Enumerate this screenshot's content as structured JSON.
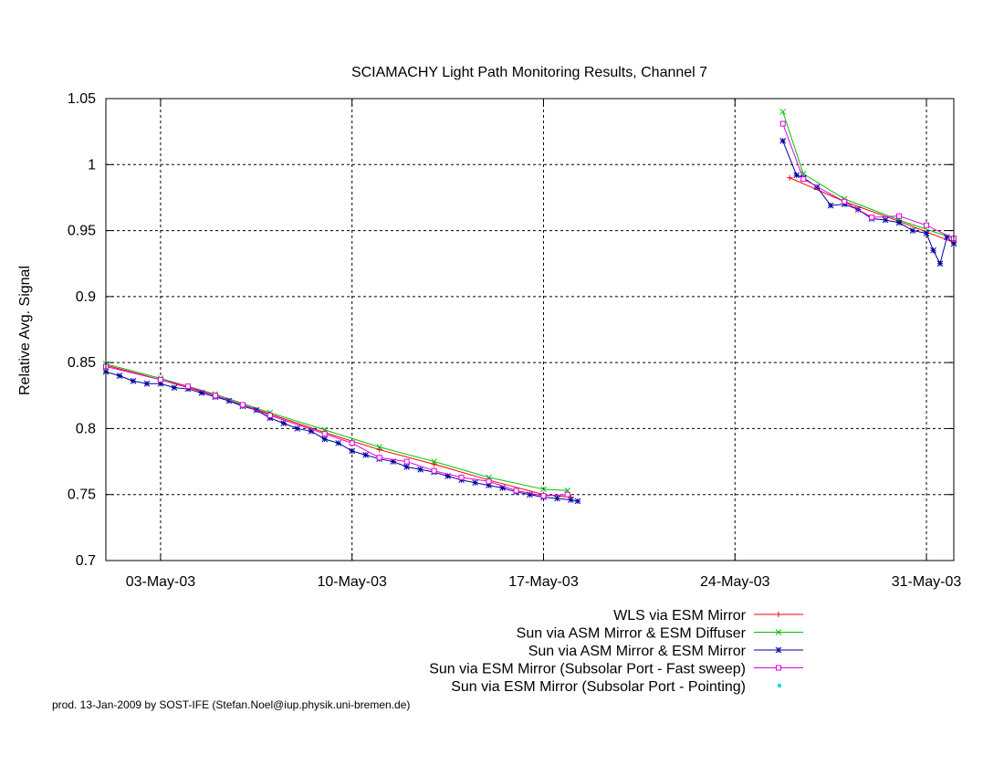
{
  "chart_data": {
    "type": "line",
    "title": "SCIAMACHY Light Path Monitoring Results, Channel 7",
    "xlabel": "",
    "ylabel": "Relative Avg. Signal",
    "x_range": [
      "2003-05-01",
      "2003-06-01"
    ],
    "ylim": [
      0.7,
      1.05
    ],
    "y_ticks": [
      0.7,
      0.75,
      0.8,
      0.85,
      0.9,
      0.95,
      1,
      1.05
    ],
    "y_tick_labels": [
      "0.7",
      "0.75",
      "0.8",
      "0.85",
      "0.9",
      "0.95",
      "1",
      "1.05"
    ],
    "x_ticks": [
      "2003-05-03",
      "2003-05-10",
      "2003-05-17",
      "2003-05-24",
      "2003-05-31"
    ],
    "x_tick_labels": [
      "03-May-03",
      "10-May-03",
      "17-May-03",
      "24-May-03",
      "31-May-03"
    ],
    "grid": true,
    "legend_position": "bottom-right",
    "series": [
      {
        "name": "WLS via ESM Mirror",
        "color": "#ff0000",
        "marker": "plus",
        "points": [
          [
            "2003-05-01",
            0.848
          ],
          [
            "2003-05-03",
            0.837
          ],
          [
            "2003-05-05",
            0.825
          ],
          [
            "2003-05-07",
            0.811
          ],
          [
            "2003-05-09",
            0.797
          ],
          [
            "2003-05-11",
            0.784
          ],
          [
            "2003-05-13",
            0.773
          ],
          [
            "2003-05-15",
            0.761
          ],
          [
            "2003-05-17",
            0.75
          ],
          [
            "2003-05-18",
            0.748
          ],
          [
            "2003-05-26",
            0.99
          ],
          [
            "2003-05-28",
            0.972
          ],
          [
            "2003-05-30",
            0.957
          ],
          [
            "2003-06-01",
            0.941
          ]
        ]
      },
      {
        "name": "Sun via ASM Mirror & ESM Diffuser",
        "color": "#00c000",
        "marker": "cross",
        "points": [
          [
            "2003-05-01",
            0.849
          ],
          [
            "2003-05-03",
            0.838
          ],
          [
            "2003-05-05",
            0.826
          ],
          [
            "2003-05-07",
            0.812
          ],
          [
            "2003-05-09",
            0.799
          ],
          [
            "2003-05-11",
            0.786
          ],
          [
            "2003-05-13",
            0.775
          ],
          [
            "2003-05-15",
            0.763
          ],
          [
            "2003-05-17",
            0.754
          ],
          [
            "2003-05-17 21:00",
            0.753
          ],
          [
            "2003-05-25 18:00",
            1.04
          ],
          [
            "2003-05-26 12:00",
            0.993
          ],
          [
            "2003-05-28",
            0.974
          ],
          [
            "2003-05-30",
            0.958
          ],
          [
            "2003-06-01",
            0.944
          ]
        ]
      },
      {
        "name": "Sun via ASM Mirror & ESM Mirror",
        "color": "#0000a0",
        "marker": "star",
        "points": [
          [
            "2003-05-01",
            0.843
          ],
          [
            "2003-05-01 12:00",
            0.84
          ],
          [
            "2003-05-02",
            0.836
          ],
          [
            "2003-05-02 12:00",
            0.834
          ],
          [
            "2003-05-03",
            0.834
          ],
          [
            "2003-05-03 12:00",
            0.831
          ],
          [
            "2003-05-04",
            0.83
          ],
          [
            "2003-05-04 12:00",
            0.827
          ],
          [
            "2003-05-05",
            0.824
          ],
          [
            "2003-05-05 12:00",
            0.821
          ],
          [
            "2003-05-06",
            0.817
          ],
          [
            "2003-05-06 12:00",
            0.814
          ],
          [
            "2003-05-07",
            0.808
          ],
          [
            "2003-05-07 12:00",
            0.804
          ],
          [
            "2003-05-08",
            0.8
          ],
          [
            "2003-05-08 12:00",
            0.798
          ],
          [
            "2003-05-09",
            0.792
          ],
          [
            "2003-05-09 12:00",
            0.789
          ],
          [
            "2003-05-10",
            0.783
          ],
          [
            "2003-05-10 12:00",
            0.78
          ],
          [
            "2003-05-11",
            0.777
          ],
          [
            "2003-05-11 12:00",
            0.775
          ],
          [
            "2003-05-12",
            0.771
          ],
          [
            "2003-05-12 12:00",
            0.769
          ],
          [
            "2003-05-13",
            0.767
          ],
          [
            "2003-05-13 12:00",
            0.764
          ],
          [
            "2003-05-14",
            0.761
          ],
          [
            "2003-05-14 12:00",
            0.759
          ],
          [
            "2003-05-15",
            0.757
          ],
          [
            "2003-05-15 12:00",
            0.755
          ],
          [
            "2003-05-16",
            0.752
          ],
          [
            "2003-05-16 12:00",
            0.75
          ],
          [
            "2003-05-17",
            0.748
          ],
          [
            "2003-05-17 12:00",
            0.747
          ],
          [
            "2003-05-18",
            0.746
          ],
          [
            "2003-05-18 06:00",
            0.745
          ],
          [
            "2003-05-25 18:00",
            1.018
          ],
          [
            "2003-05-26 06:00",
            0.992
          ],
          [
            "2003-05-26 12:00",
            0.99
          ],
          [
            "2003-05-27",
            0.983
          ],
          [
            "2003-05-27 12:00",
            0.969
          ],
          [
            "2003-05-28",
            0.97
          ],
          [
            "2003-05-28 12:00",
            0.966
          ],
          [
            "2003-05-29",
            0.959
          ],
          [
            "2003-05-29 12:00",
            0.958
          ],
          [
            "2003-05-30",
            0.956
          ],
          [
            "2003-05-30 12:00",
            0.95
          ],
          [
            "2003-05-31",
            0.948
          ],
          [
            "2003-05-31 06:00",
            0.935
          ],
          [
            "2003-05-31 12:00",
            0.925
          ],
          [
            "2003-05-31 18:00",
            0.945
          ],
          [
            "2003-06-01",
            0.94
          ]
        ]
      },
      {
        "name": "Sun via ESM Mirror (Subsolar Port - Fast sweep)",
        "color": "#e000e0",
        "marker": "square",
        "points": [
          [
            "2003-05-01",
            0.847
          ],
          [
            "2003-05-03",
            0.837
          ],
          [
            "2003-05-04",
            0.832
          ],
          [
            "2003-05-05",
            0.825
          ],
          [
            "2003-05-06",
            0.818
          ],
          [
            "2003-05-07",
            0.81
          ],
          [
            "2003-05-09",
            0.796
          ],
          [
            "2003-05-10",
            0.789
          ],
          [
            "2003-05-11",
            0.778
          ],
          [
            "2003-05-12",
            0.775
          ],
          [
            "2003-05-13",
            0.768
          ],
          [
            "2003-05-14",
            0.763
          ],
          [
            "2003-05-15",
            0.76
          ],
          [
            "2003-05-16",
            0.753
          ],
          [
            "2003-05-17",
            0.749
          ],
          [
            "2003-05-17 21:00",
            0.75
          ],
          [
            "2003-05-25 18:00",
            1.031
          ],
          [
            "2003-05-26 12:00",
            0.989
          ],
          [
            "2003-05-28",
            0.972
          ],
          [
            "2003-05-29",
            0.96
          ],
          [
            "2003-05-30",
            0.961
          ],
          [
            "2003-05-31",
            0.954
          ],
          [
            "2003-06-01",
            0.944
          ]
        ]
      },
      {
        "name": "Sun via ESM Mirror (Subsolar Port - Pointing)",
        "color": "#00e0e0",
        "marker": "dot",
        "points": []
      }
    ]
  },
  "footer": "prod. 13-Jan-2009 by SOST-IFE (Stefan.Noel@iup.physik.uni-bremen.de)"
}
